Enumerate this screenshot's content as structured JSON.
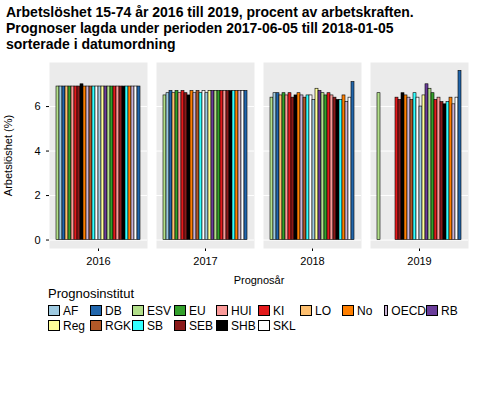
{
  "chart_data": {
    "type": "bar",
    "title": "Arbetslöshet 15-74 år 2016 till 2019, procent av arbetskraften.\nPrognoser lagda under perioden 2017-06-05 till 2018-01-05\nsorterade i datumordning",
    "xlabel": "Prognosår",
    "ylabel": "Arbetslöshet (%)",
    "legend_title": "Prognosinstitut",
    "categories": [
      "2016",
      "2017",
      "2018",
      "2019"
    ],
    "ylim": [
      -0.38,
      7.98
    ],
    "yticks": [
      0,
      2,
      4,
      6
    ],
    "grid": true,
    "legend": "bottom",
    "series": [
      {
        "name": "AF",
        "color": "#9ecae1"
      },
      {
        "name": "DB",
        "color": "#2166ac"
      },
      {
        "name": "ESV",
        "color": "#b2df8a"
      },
      {
        "name": "EU",
        "color": "#33a02c"
      },
      {
        "name": "HUI",
        "color": "#fb9a99"
      },
      {
        "name": "KI",
        "color": "#e31a1c"
      },
      {
        "name": "LO",
        "color": "#fdbf6f"
      },
      {
        "name": "No",
        "color": "#ff7f00"
      },
      {
        "name": "OECD",
        "color": "#cab2d6"
      },
      {
        "name": "RB",
        "color": "#6a3d9a"
      },
      {
        "name": "Reg",
        "color": "#ffff99"
      },
      {
        "name": "RGK",
        "color": "#b15928"
      },
      {
        "name": "SB",
        "color": "#33ffff"
      },
      {
        "name": "SEB",
        "color": "#8b1a1a"
      },
      {
        "name": "SHB",
        "color": "#000000"
      },
      {
        "name": "SKL",
        "color": "#ffffff"
      }
    ],
    "forecasts": [
      {
        "institute": "ESV",
        "values": [
          6.9,
          6.5,
          6.4,
          6.6
        ]
      },
      {
        "institute": "AF",
        "values": [
          6.9,
          6.6,
          6.6,
          null
        ]
      },
      {
        "institute": "DB",
        "values": [
          6.9,
          6.7,
          6.6,
          null
        ]
      },
      {
        "institute": "LO",
        "values": [
          6.9,
          6.6,
          6.5,
          null
        ]
      },
      {
        "institute": "EU",
        "values": [
          6.9,
          6.7,
          6.6,
          null
        ]
      },
      {
        "institute": "HUI",
        "values": [
          6.9,
          6.6,
          6.5,
          null
        ]
      },
      {
        "institute": "KI",
        "values": [
          6.9,
          6.7,
          6.6,
          6.4
        ]
      },
      {
        "institute": "SEB",
        "values": [
          6.9,
          6.6,
          6.4,
          6.3
        ]
      },
      {
        "institute": "SHB",
        "values": [
          7.0,
          6.5,
          6.5,
          6.6
        ]
      },
      {
        "institute": "No",
        "values": [
          6.9,
          6.7,
          6.6,
          6.5
        ]
      },
      {
        "institute": "OECD",
        "values": [
          6.9,
          6.6,
          6.5,
          6.4
        ]
      },
      {
        "institute": "RGK",
        "values": [
          6.9,
          6.7,
          6.4,
          6.3
        ]
      },
      {
        "institute": "SB",
        "values": [
          6.9,
          6.6,
          6.5,
          6.6
        ]
      },
      {
        "institute": "SKL",
        "values": [
          6.9,
          6.7,
          6.5,
          6.4
        ]
      },
      {
        "institute": "AF",
        "values": [
          6.9,
          6.6,
          6.3,
          6.0
        ]
      },
      {
        "institute": "Reg",
        "values": [
          6.9,
          6.7,
          6.8,
          6.5
        ]
      },
      {
        "institute": "RB",
        "values": [
          6.9,
          6.7,
          6.7,
          7.0
        ]
      },
      {
        "institute": "ESV",
        "values": [
          6.9,
          6.7,
          6.6,
          6.8
        ]
      },
      {
        "institute": "EU",
        "values": [
          6.9,
          6.7,
          6.5,
          6.6
        ]
      },
      {
        "institute": "KI",
        "values": [
          6.9,
          6.7,
          6.6,
          6.3
        ]
      },
      {
        "institute": "HUI",
        "values": [
          6.9,
          6.7,
          6.5,
          6.4
        ]
      },
      {
        "institute": "SEB",
        "values": [
          6.9,
          6.7,
          6.4,
          6.2
        ]
      },
      {
        "institute": "SHB",
        "values": [
          6.9,
          6.7,
          6.3,
          6.1
        ]
      },
      {
        "institute": "SB",
        "values": [
          6.9,
          6.7,
          6.3,
          6.2
        ]
      },
      {
        "institute": "No",
        "values": [
          6.9,
          6.7,
          6.5,
          6.4
        ]
      },
      {
        "institute": "OECD",
        "values": [
          6.9,
          6.7,
          6.2,
          6.1
        ]
      },
      {
        "institute": "SKL",
        "values": [
          6.9,
          6.7,
          6.4,
          6.4
        ]
      },
      {
        "institute": "DB",
        "values": [
          6.9,
          6.7,
          7.1,
          7.6
        ]
      }
    ]
  }
}
